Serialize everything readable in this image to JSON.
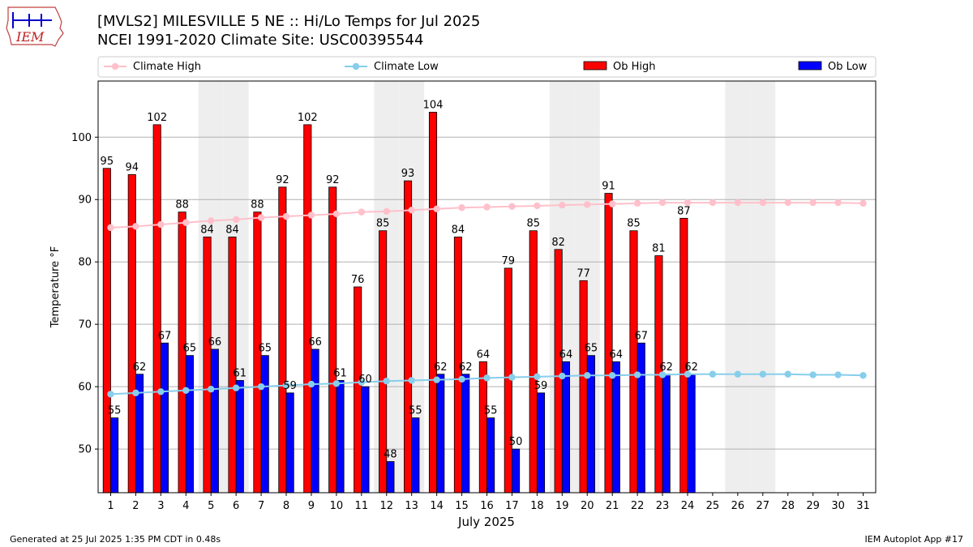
{
  "header": {
    "title_line1": "[MVLS2] MILESVILLE 5 NE :: Hi/Lo Temps for Jul 2025",
    "title_line2": "NCEI 1991-2020 Climate Site: USC00395544",
    "logo_text": "IEM"
  },
  "footer": {
    "generated": "Generated at 25 Jul 2025 1:35 PM CDT in 0.48s",
    "app": "IEM Autoplot App #17"
  },
  "colors": {
    "ob_high": "#ff0000",
    "ob_low": "#0000ff",
    "climate_high": "#ffc0cb",
    "climate_low": "#87ceeb",
    "weekend_band": "#eeeeee",
    "grid": "#b0b0b0"
  },
  "chart_data": {
    "type": "bar",
    "xlabel": "July 2025",
    "ylabel": "Temperature °F",
    "ylim": [
      43,
      109
    ],
    "yticks": [
      50,
      60,
      70,
      80,
      90,
      100
    ],
    "grid": "horizontal",
    "legend_position": "top",
    "categories": [
      "1",
      "2",
      "3",
      "4",
      "5",
      "6",
      "7",
      "8",
      "9",
      "10",
      "11",
      "12",
      "13",
      "14",
      "15",
      "16",
      "17",
      "18",
      "19",
      "20",
      "21",
      "22",
      "23",
      "24",
      "25",
      "26",
      "27",
      "28",
      "29",
      "30",
      "31"
    ],
    "weekend_days": [
      5,
      6,
      12,
      13,
      19,
      20,
      26,
      27
    ],
    "series": [
      {
        "name": "Ob High",
        "kind": "bar",
        "values": [
          95,
          94,
          102,
          88,
          84,
          84,
          88,
          92,
          102,
          92,
          76,
          85,
          93,
          104,
          84,
          64,
          79,
          85,
          82,
          77,
          91,
          85,
          81,
          87,
          null,
          null,
          null,
          null,
          null,
          null,
          null
        ]
      },
      {
        "name": "Ob Low",
        "kind": "bar",
        "values": [
          55,
          62,
          67,
          65,
          66,
          61,
          65,
          59,
          66,
          61,
          60,
          48,
          55,
          62,
          62,
          55,
          50,
          59,
          64,
          65,
          64,
          67,
          62,
          62,
          null,
          null,
          null,
          null,
          null,
          null,
          null
        ]
      },
      {
        "name": "Climate High",
        "kind": "line",
        "values": [
          85.5,
          85.7,
          86.0,
          86.3,
          86.6,
          86.8,
          87.1,
          87.3,
          87.5,
          87.7,
          88.0,
          88.1,
          88.3,
          88.5,
          88.7,
          88.8,
          88.9,
          89.0,
          89.1,
          89.2,
          89.3,
          89.4,
          89.5,
          89.5,
          89.5,
          89.5,
          89.5,
          89.5,
          89.5,
          89.5,
          89.4
        ]
      },
      {
        "name": "Climate Low",
        "kind": "line",
        "values": [
          58.8,
          59.0,
          59.2,
          59.4,
          59.6,
          59.8,
          60.0,
          60.2,
          60.4,
          60.5,
          60.7,
          60.9,
          61.0,
          61.1,
          61.2,
          61.4,
          61.5,
          61.6,
          61.7,
          61.8,
          61.8,
          61.9,
          61.9,
          62.0,
          62.0,
          62.0,
          62.0,
          62.0,
          61.9,
          61.9,
          61.8
        ]
      }
    ],
    "legend": [
      "Climate High",
      "Climate Low",
      "Ob High",
      "Ob Low"
    ]
  }
}
